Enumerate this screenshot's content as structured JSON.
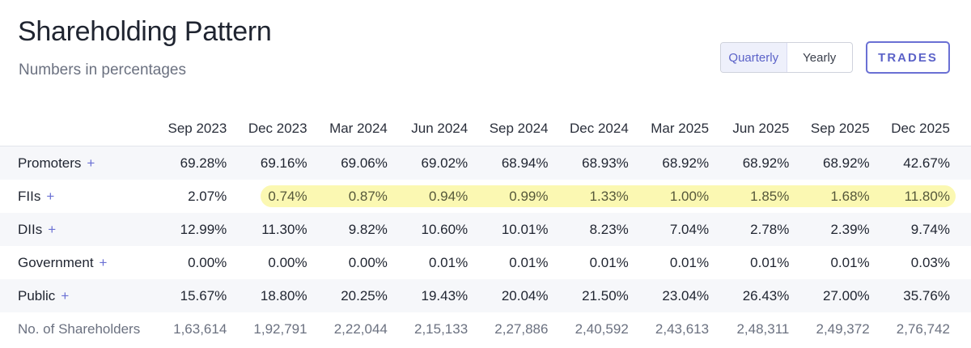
{
  "header": {
    "title": "Shareholding Pattern",
    "subtitle": "Numbers in percentages",
    "toggle": {
      "quarterly": "Quarterly",
      "yearly": "Yearly",
      "selected": "Quarterly"
    },
    "trades_label": "TRADES"
  },
  "colors": {
    "accent": "#6a70d4",
    "highlight": "#fbf8b2",
    "row_shade": "#f6f7fa"
  },
  "table": {
    "columns": [
      "Sep 2023",
      "Dec 2023",
      "Mar 2024",
      "Jun 2024",
      "Sep 2024",
      "Dec 2024",
      "Mar 2025",
      "Jun 2025",
      "Sep 2025",
      "Dec 2025"
    ],
    "rows": [
      {
        "label": "Promoters",
        "plus": "+",
        "values": [
          "69.28%",
          "69.16%",
          "69.06%",
          "69.02%",
          "68.94%",
          "68.93%",
          "68.92%",
          "68.92%",
          "68.92%",
          "42.67%"
        ]
      },
      {
        "label": "FIIs",
        "plus": "+",
        "values": [
          "2.07%",
          "0.74%",
          "0.87%",
          "0.94%",
          "0.99%",
          "1.33%",
          "1.00%",
          "1.85%",
          "1.68%",
          "11.80%"
        ]
      },
      {
        "label": "DIIs",
        "plus": "+",
        "values": [
          "12.99%",
          "11.30%",
          "9.82%",
          "10.60%",
          "10.01%",
          "8.23%",
          "7.04%",
          "2.78%",
          "2.39%",
          "9.74%"
        ]
      },
      {
        "label": "Government",
        "plus": "+",
        "values": [
          "0.00%",
          "0.00%",
          "0.00%",
          "0.01%",
          "0.01%",
          "0.01%",
          "0.01%",
          "0.01%",
          "0.01%",
          "0.03%"
        ]
      },
      {
        "label": "Public",
        "plus": "+",
        "values": [
          "15.67%",
          "18.80%",
          "20.25%",
          "19.43%",
          "20.04%",
          "21.50%",
          "23.04%",
          "26.43%",
          "27.00%",
          "35.76%"
        ]
      },
      {
        "label": "No. of Shareholders",
        "values": [
          "1,63,614",
          "1,92,791",
          "2,22,044",
          "2,15,133",
          "2,27,886",
          "2,40,592",
          "2,43,613",
          "2,48,311",
          "2,49,372",
          "2,76,742"
        ]
      }
    ]
  }
}
